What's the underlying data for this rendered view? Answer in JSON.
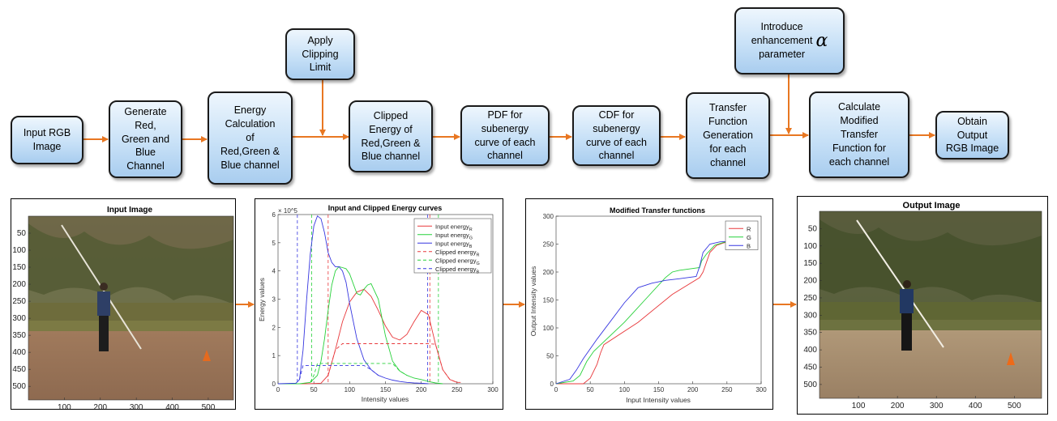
{
  "flow": {
    "input_rgb": "Input RGB\nImage",
    "generate": "Generate\nRed,\nGreen and\nBlue\nChannel",
    "energy": "Energy\nCalculation\nof\nRed,Green &\nBlue channel",
    "clip_limit": "Apply\nClipping\nLimit",
    "clipped": "Clipped\nEnergy of\nRed,Green &\nBlue channel",
    "pdf": "PDF for\nsubenergy\ncurve of each\nchannel",
    "cdf": "CDF for\nsubenergy\ncurve of each\nchannel",
    "transfer": "Transfer\nFunction\nGeneration\nfor each\nchannel",
    "enhance_text": "Introduce\nenhancement\nparameter",
    "enhance_symbol": "α",
    "modified": "Calculate\nModified\nTransfer\nFunction for\neach channel",
    "obtain": "Obtain\nOutput\nRGB Image"
  },
  "panels": {
    "input_image": {
      "title": "Input Image",
      "yticks": [
        "50",
        "100",
        "150",
        "200",
        "250",
        "300",
        "350",
        "400",
        "450",
        "500"
      ],
      "xticks": [
        "100",
        "200",
        "300",
        "400",
        "500"
      ]
    },
    "output_image": {
      "title": "Output Image",
      "yticks": [
        "50",
        "100",
        "150",
        "200",
        "250",
        "300",
        "350",
        "400",
        "450",
        "500"
      ],
      "xticks": [
        "100",
        "200",
        "300",
        "400",
        "500"
      ]
    }
  },
  "chart_data": [
    {
      "type": "line",
      "title": "Input and Clipped Energy curves",
      "xlabel": "Intensity values",
      "ylabel": "Energy values",
      "y_multiplier": "× 10^5",
      "xlim": [
        0,
        300
      ],
      "ylim": [
        0,
        6
      ],
      "xticks": [
        0,
        50,
        100,
        150,
        200,
        250,
        300
      ],
      "yticks": [
        0,
        1,
        2,
        3,
        4,
        5,
        6
      ],
      "legend_position": "top-right",
      "colors": {
        "R": "#e8383b",
        "G": "#27d13a",
        "B": "#3636e0"
      },
      "series": [
        {
          "name": "Input energy_R",
          "channel": "R",
          "style": "solid",
          "x": [
            0,
            40,
            60,
            70,
            80,
            90,
            100,
            110,
            120,
            130,
            140,
            150,
            160,
            170,
            180,
            190,
            200,
            210,
            220,
            230,
            240,
            250,
            255
          ],
          "y": [
            0,
            0,
            0.02,
            0.3,
            1.2,
            2.2,
            2.9,
            3.25,
            3.35,
            3.1,
            2.6,
            2.05,
            1.65,
            1.55,
            1.75,
            2.2,
            2.6,
            2.45,
            1.4,
            0.5,
            0.15,
            0.05,
            0.05
          ]
        },
        {
          "name": "Input energy_G",
          "channel": "G",
          "style": "solid",
          "x": [
            0,
            30,
            45,
            55,
            60,
            65,
            70,
            75,
            80,
            85,
            90,
            95,
            100,
            110,
            115,
            120,
            125,
            130,
            140,
            150,
            160,
            170,
            180,
            190,
            200,
            210,
            220,
            230
          ],
          "y": [
            0,
            0,
            0.05,
            0.3,
            0.8,
            1.6,
            2.6,
            3.5,
            4.0,
            4.15,
            4.12,
            4.08,
            3.9,
            3.2,
            3.15,
            3.35,
            3.5,
            3.55,
            3.0,
            1.7,
            0.8,
            0.45,
            0.3,
            0.2,
            0.15,
            0.08,
            0.03,
            0
          ]
        },
        {
          "name": "Input energy_B",
          "channel": "B",
          "style": "solid",
          "x": [
            0,
            25,
            30,
            35,
            40,
            45,
            50,
            55,
            60,
            65,
            70,
            75,
            80,
            85,
            90,
            95,
            100,
            110,
            120,
            130,
            140,
            150,
            160,
            170,
            180,
            190,
            200,
            210
          ],
          "y": [
            0,
            0.02,
            0.15,
            1.2,
            3.0,
            4.6,
            5.6,
            5.95,
            5.85,
            5.35,
            4.65,
            4.3,
            4.15,
            4.15,
            4.0,
            3.6,
            2.85,
            1.6,
            0.85,
            0.5,
            0.3,
            0.2,
            0.13,
            0.08,
            0.05,
            0.03,
            0.02,
            0
          ]
        },
        {
          "name": "Clipped energy_R",
          "channel": "R",
          "style": "dashed",
          "x": [
            70,
            80,
            90,
            100,
            210,
            220,
            230,
            240,
            250
          ],
          "y": [
            0.3,
            1.2,
            1.42,
            1.42,
            1.42,
            1.4,
            0.5,
            0.15,
            0.05
          ]
        },
        {
          "name": "Clipped energy_G",
          "channel": "G",
          "style": "dashed",
          "x": [
            45,
            50,
            55,
            60,
            150,
            160,
            170,
            180
          ],
          "y": [
            0.05,
            0.3,
            0.72,
            0.72,
            0.72,
            0.72,
            0.45,
            0.3
          ]
        },
        {
          "name": "Clipped energy_B",
          "channel": "B",
          "style": "dashed",
          "x": [
            30,
            35,
            40,
            80,
            90,
            100,
            110,
            120,
            130,
            140
          ],
          "y": [
            0.15,
            0.65,
            0.65,
            0.65,
            0.65,
            0.65,
            0.65,
            0.65,
            0.5,
            0.3
          ]
        }
      ],
      "vlines": [
        {
          "channel": "B",
          "x": 27
        },
        {
          "channel": "G",
          "x": 47
        },
        {
          "channel": "R",
          "x": 70
        },
        {
          "channel": "B",
          "x": 209
        },
        {
          "channel": "R",
          "x": 212
        },
        {
          "channel": "G",
          "x": 224
        }
      ]
    },
    {
      "type": "line",
      "title": "Modified Transfer functions",
      "xlabel": "Input Intensity values",
      "ylabel": "Output Intensity values",
      "xlim": [
        0,
        300
      ],
      "ylim": [
        0,
        300
      ],
      "xticks": [
        0,
        50,
        100,
        150,
        200,
        250,
        300
      ],
      "yticks": [
        0,
        50,
        100,
        150,
        200,
        250,
        300
      ],
      "legend_position": "top-right",
      "colors": {
        "R": "#e8383b",
        "G": "#27d13a",
        "B": "#3636e0"
      },
      "series": [
        {
          "name": "R",
          "channel": "R",
          "x": [
            0,
            40,
            50,
            60,
            65,
            70,
            120,
            170,
            210,
            215,
            225,
            235,
            245,
            255
          ],
          "y": [
            0,
            0,
            10,
            35,
            55,
            70,
            110,
            160,
            190,
            200,
            235,
            248,
            252,
            255
          ]
        },
        {
          "name": "G",
          "channel": "G",
          "x": [
            0,
            25,
            35,
            45,
            55,
            100,
            130,
            160,
            170,
            180,
            210,
            213,
            220,
            232,
            245,
            255
          ],
          "y": [
            0,
            5,
            15,
            40,
            58,
            110,
            150,
            190,
            200,
            203,
            208,
            220,
            232,
            248,
            253,
            255
          ]
        },
        {
          "name": "B",
          "channel": "B",
          "x": [
            0,
            20,
            30,
            40,
            60,
            100,
            120,
            140,
            160,
            180,
            205,
            210,
            215,
            225,
            240,
            255
          ],
          "y": [
            0,
            8,
            25,
            45,
            80,
            145,
            172,
            180,
            185,
            188,
            192,
            210,
            235,
            250,
            254,
            255
          ]
        }
      ]
    }
  ]
}
